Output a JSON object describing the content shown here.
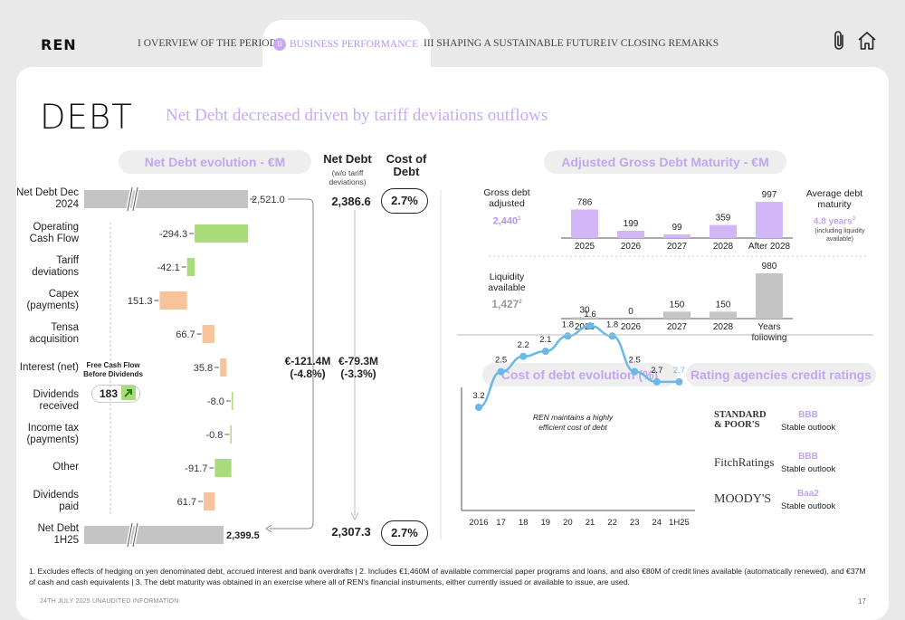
{
  "header": {
    "logo": "REN",
    "nav": [
      {
        "label": "I OVERVIEW OF THE PERIOD"
      },
      {
        "badge": "II",
        "label": "BUSINESS PERFORMANCE"
      },
      {
        "label": "III SHAPING A SUSTAINABLE FUTURE"
      },
      {
        "label": "IV CLOSING REMARKS"
      }
    ],
    "icons": [
      "paperclip-icon",
      "home-icon"
    ]
  },
  "page": {
    "title": "DEBT",
    "subtitle": "Net Debt decreased driven by tariff deviations outflows",
    "footnote": "1. Excludes effects of hedging on yen denominated debt, accrued interest and bank overdrafts   | 2. Includes €1,460M of available commercial paper programs and loans, and also €80M of credit lines available (automatically renewed), and €37M of cash and cash equivalents | 3. The debt maturity was obtained in an exercise where all of REN's financial instruments, either currently issued or available to issue, are used.",
    "footer_left": "24TH JULY 2025 UNAUDITED INFORMATION",
    "page_number": "17"
  },
  "net_debt_panel": {
    "heading": "Net Debt evolution - €M",
    "col_net_debt": "Net Debt",
    "col_net_debt_note": "(w/o tariff deviations)",
    "col_cost": "Cost of Debt",
    "fcf_label": "Free Cash Flow Before Dividends",
    "fcf_value": "183",
    "change_total": "€-121.4M (-4.8%)",
    "change_ex_tariff": "€-79.3M (-3.3%)",
    "start": {
      "net_debt_wo_tariff": "2,386.6",
      "cost": "2.7%"
    },
    "end": {
      "net_debt_wo_tariff": "2,307.3",
      "cost": "2.7%"
    }
  },
  "maturity_panel": {
    "heading": "Adjusted Gross Debt Maturity - €M",
    "gross_label": "Gross debt adjusted",
    "gross_value": "2,440",
    "gross_sup": "1",
    "liq_label": "Liquidity available",
    "liq_value": "1,427",
    "liq_sup": "2",
    "avg_label": "Average debt maturity",
    "avg_value": "4.8 years",
    "avg_sup": "3",
    "avg_note": "(including liquidity available)"
  },
  "cost_panel": {
    "heading": "Cost of debt evolution (%)",
    "note": "REN maintains a highly efficient cost of debt"
  },
  "ratings_panel": {
    "heading": "Rating agencies credit ratings",
    "agencies": [
      {
        "name": "STANDARD & POOR'S",
        "rating": "BBB",
        "outlook": "Stable outlook"
      },
      {
        "name": "FitchRatings",
        "rating": "BBB",
        "outlook": "Stable outlook"
      },
      {
        "name": "MOODY'S",
        "rating": "Baa2",
        "outlook": "Stable outlook"
      }
    ]
  },
  "colors": {
    "accent": "#c2a6f2",
    "bar_grey": "#c4c4c4",
    "bar_green": "#a8dc7a",
    "bar_orange": "#f7c39a",
    "bar_purple": "#d2b6f7",
    "line_blue": "#6ab7ea"
  },
  "chart_data": [
    {
      "type": "bar",
      "title": "Net Debt evolution - €M",
      "categories": [
        "Net Debt Dec 2024",
        "Operating Cash Flow",
        "Tariff deviations",
        "Capex (payments)",
        "Tensa acquisition",
        "Interest (net)",
        "Dividends received",
        "Income tax (payments)",
        "Other",
        "Dividends paid",
        "Net Debt 1H25"
      ],
      "values": [
        2521.0,
        -294.3,
        -42.1,
        151.3,
        66.7,
        35.8,
        -8.0,
        -0.8,
        -91.7,
        61.7,
        2399.5
      ],
      "labels": [
        "2,521.0",
        "-294.3",
        "-42.1",
        "151.3",
        "66.7",
        "35.8",
        "-8.0",
        "-0.8",
        "-91.7",
        "61.7",
        "2,399.5"
      ]
    },
    {
      "type": "bar",
      "title": "Adjusted Gross Debt Maturity - €M",
      "series": [
        {
          "name": "Gross debt adjusted",
          "categories": [
            "2025",
            "2026",
            "2027",
            "2028",
            "After 2028"
          ],
          "values": [
            786,
            199,
            99,
            359,
            997
          ]
        },
        {
          "name": "Liquidity available",
          "categories": [
            "2025",
            "2026",
            "2027",
            "2028",
            "Years following"
          ],
          "values": [
            30,
            0,
            150,
            150,
            980
          ]
        }
      ]
    },
    {
      "type": "line",
      "title": "Cost of debt evolution (%)",
      "x": [
        "2016",
        "17",
        "18",
        "19",
        "20",
        "21",
        "22",
        "23",
        "24",
        "1H25"
      ],
      "values": [
        3.2,
        2.5,
        2.2,
        2.1,
        1.8,
        1.6,
        1.8,
        2.5,
        2.7,
        2.7
      ]
    }
  ]
}
